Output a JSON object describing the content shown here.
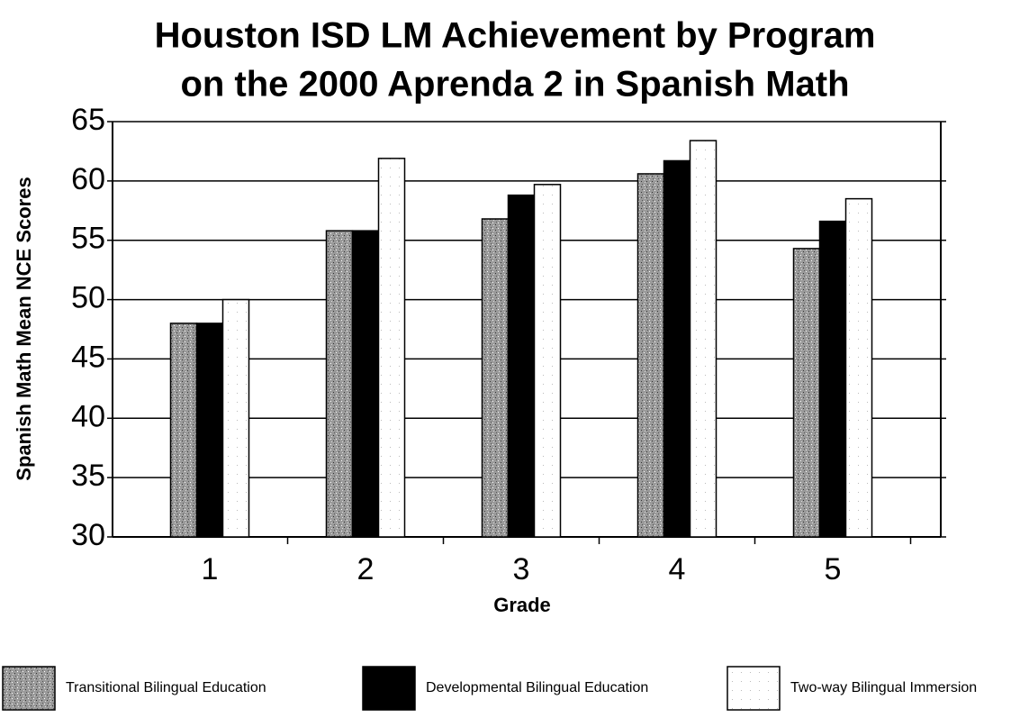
{
  "chart_data": {
    "type": "bar",
    "title": "Houston ISD LM Achievement by Program",
    "subtitle": "on the 2000 Aprenda 2 in Spanish Math",
    "x_label": "Grade",
    "y_label": "Spanish Math Mean NCE Scores",
    "categories": [
      "1",
      "2",
      "3",
      "4",
      "5"
    ],
    "series": [
      {
        "name": "Transitional Bilingual Education",
        "color": "#9a9a9a",
        "values": [
          48,
          55.8,
          56.8,
          60.6,
          54.3
        ]
      },
      {
        "name": "Developmental Bilingual Education",
        "color": "#000000",
        "values": [
          48,
          55.8,
          58.8,
          61.7,
          56.6
        ]
      },
      {
        "name": "Two-way Bilingual Immersion",
        "color": "#ffffff",
        "values": [
          50,
          61.9,
          59.7,
          63.4,
          58.5
        ]
      }
    ],
    "ylim": [
      30,
      65
    ],
    "yticks": [
      30,
      35,
      40,
      45,
      50,
      55,
      60,
      65
    ],
    "grid": true,
    "legend": "bottom"
  }
}
